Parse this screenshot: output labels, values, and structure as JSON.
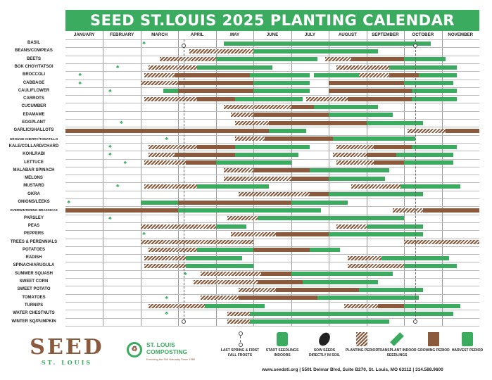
{
  "title": "SEED ST.LOUIS 2025 PLANTING CALENDAR",
  "months": [
    "JANUARY",
    "FEBRUARY",
    "MARCH",
    "APRIL",
    "MAY",
    "JUNE",
    "JULY",
    "AUGUST",
    "SEPTEMBER",
    "OCTOBER",
    "NOVEMBER"
  ],
  "frost_dates": {
    "last_spring_month": 3.15,
    "first_fall_month": 9.3
  },
  "crops": [
    {
      "name": "BASIL",
      "periods": [
        [
          "g",
          4.2,
          9.7
        ]
      ],
      "icons": [
        [
          "sprout",
          2.1
        ]
      ]
    },
    {
      "name": "BEANS/COWPEAS",
      "periods": [
        [
          "p",
          3.3,
          5.0
        ],
        [
          "g",
          5.0,
          8.3
        ]
      ]
    },
    {
      "name": "BEETS",
      "periods": [
        [
          "p",
          2.5,
          4.0
        ],
        [
          "g",
          4.0,
          6.7
        ],
        [
          "p",
          6.9,
          7.6
        ],
        [
          "b",
          7.6,
          9.0
        ],
        [
          "g",
          9.0,
          10.1
        ]
      ]
    },
    {
      "name": "BOK CHOY/TATSOI",
      "periods": [
        [
          "p",
          2.2,
          3.5
        ],
        [
          "g",
          3.5,
          5.5
        ],
        [
          "p",
          7.2,
          8.6
        ],
        [
          "g",
          8.6,
          10.4
        ]
      ],
      "icons": [
        [
          "sprout",
          1.4
        ]
      ]
    },
    {
      "name": "BROCCOLI",
      "periods": [
        [
          "p",
          2.1,
          2.9
        ],
        [
          "b",
          2.9,
          4.9
        ],
        [
          "g",
          4.9,
          6.5
        ],
        [
          "g",
          6.6,
          8.4
        ],
        [
          "p",
          7.8,
          8.6
        ],
        [
          "b",
          8.6,
          9.4
        ],
        [
          "g",
          9.4,
          10.4
        ]
      ],
      "icons": [
        [
          "sprout",
          0.4
        ]
      ]
    },
    {
      "name": "CABBAGE",
      "periods": [
        [
          "p",
          2.0,
          3.0
        ],
        [
          "b",
          3.0,
          5.0
        ],
        [
          "g",
          5.0,
          6.5
        ],
        [
          "b",
          7.0,
          9.0
        ],
        [
          "g",
          9.0,
          10.3
        ]
      ],
      "icons": [
        [
          "sprout",
          0.4
        ]
      ]
    },
    {
      "name": "CAULIFLOWER",
      "periods": [
        [
          "g",
          2.6,
          3.0
        ],
        [
          "b",
          3.0,
          5.0
        ],
        [
          "g",
          5.0,
          6.5
        ],
        [
          "b",
          7.0,
          9.2
        ],
        [
          "g",
          9.2,
          10.4
        ]
      ],
      "icons": [
        [
          "sprout",
          1.2
        ]
      ]
    },
    {
      "name": "CARROTS",
      "periods": [
        [
          "p",
          2.1,
          3.5
        ],
        [
          "b",
          3.5,
          4.5
        ],
        [
          "g",
          4.5,
          6.3
        ],
        [
          "p",
          6.4,
          7.5
        ],
        [
          "b",
          7.5,
          9.2
        ],
        [
          "g",
          9.2,
          10.4
        ]
      ]
    },
    {
      "name": "CUCUMBER",
      "periods": [
        [
          "p",
          4.2,
          6.0
        ],
        [
          "b",
          6.0,
          6.6
        ],
        [
          "g",
          6.6,
          8.3
        ]
      ]
    },
    {
      "name": "EDAMAME",
      "periods": [
        [
          "p",
          4.4,
          5.0
        ],
        [
          "b",
          5.0,
          7.0
        ],
        [
          "g",
          7.0,
          8.7
        ]
      ]
    },
    {
      "name": "EGGPLANT",
      "periods": [
        [
          "p",
          4.5,
          5.4
        ],
        [
          "b",
          5.4,
          8.0
        ],
        [
          "g",
          8.0,
          9.5
        ]
      ],
      "icons": [
        [
          "sprout",
          1.5
        ]
      ]
    },
    {
      "name": "GARLIC/SHALLOTS",
      "periods": [
        [
          "b",
          0.0,
          5.4
        ],
        [
          "g",
          5.4,
          6.4
        ],
        [
          "p",
          9.1,
          10.1
        ],
        [
          "b",
          10.1,
          11.0
        ]
      ]
    },
    {
      "name": "GROUND CHERRY/TOMATILLO",
      "tiny": true,
      "periods": [
        [
          "p",
          4.5,
          5.3
        ],
        [
          "b",
          5.3,
          7.1
        ],
        [
          "g",
          7.1,
          9.3
        ]
      ],
      "icons": [
        [
          "sprout",
          2.7
        ]
      ]
    },
    {
      "name": "KALE/COLLARD/CHARD",
      "periods": [
        [
          "p",
          2.2,
          3.5
        ],
        [
          "b",
          3.5,
          4.5
        ],
        [
          "g",
          4.5,
          6.5
        ],
        [
          "p",
          7.2,
          8.2
        ],
        [
          "b",
          8.2,
          9.2
        ],
        [
          "g",
          9.2,
          10.4
        ]
      ],
      "icons": [
        [
          "sprout",
          1.2
        ]
      ]
    },
    {
      "name": "KOHLRABI",
      "periods": [
        [
          "p",
          2.2,
          2.9
        ],
        [
          "b",
          2.9,
          4.5
        ],
        [
          "g",
          4.5,
          6.2
        ],
        [
          "p",
          7.1,
          8.0
        ],
        [
          "b",
          8.0,
          8.8
        ],
        [
          "g",
          8.8,
          10.3
        ]
      ],
      "icons": [
        [
          "sprout",
          1.2
        ]
      ]
    },
    {
      "name": "LETTUCE",
      "periods": [
        [
          "p",
          2.1,
          3.2
        ],
        [
          "b",
          3.2,
          4.0
        ],
        [
          "g",
          4.0,
          6.0
        ],
        [
          "p",
          7.2,
          8.2
        ],
        [
          "b",
          8.2,
          9.0
        ],
        [
          "g",
          9.0,
          10.3
        ]
      ],
      "icons": [
        [
          "sprout",
          1.6
        ]
      ]
    },
    {
      "name": "MALABAR SPINACH",
      "periods": [
        [
          "p",
          4.2,
          5.0
        ],
        [
          "b",
          5.0,
          6.5
        ],
        [
          "g",
          6.5,
          8.6
        ]
      ]
    },
    {
      "name": "MELONS",
      "periods": [
        [
          "p",
          4.2,
          6.0
        ],
        [
          "b",
          6.0,
          7.0
        ],
        [
          "g",
          7.0,
          8.5
        ]
      ]
    },
    {
      "name": "MUSTARD",
      "periods": [
        [
          "p",
          2.1,
          3.5
        ],
        [
          "g",
          3.5,
          5.4
        ],
        [
          "p",
          7.6,
          8.9
        ],
        [
          "g",
          8.9,
          10.5
        ]
      ],
      "icons": [
        [
          "sprout",
          1.4
        ]
      ]
    },
    {
      "name": "OKRA",
      "periods": [
        [
          "p",
          4.6,
          6.5
        ],
        [
          "b",
          6.5,
          7.0
        ],
        [
          "g",
          7.0,
          9.5
        ]
      ]
    },
    {
      "name": "ONIONS/LEEKS",
      "periods": [
        [
          "g",
          2.0,
          3.0
        ],
        [
          "b",
          3.0,
          6.0
        ],
        [
          "g",
          6.0,
          7.5
        ]
      ],
      "icons": [
        [
          "sprout",
          0.1
        ]
      ]
    },
    {
      "name": "OVERWINTERING BRASSICAS",
      "tiny": true,
      "periods": [
        [
          "b",
          0.0,
          3.0
        ],
        [
          "g",
          3.0,
          6.8
        ],
        [
          "p",
          8.7,
          9.5
        ],
        [
          "b",
          9.5,
          11.0
        ]
      ]
    },
    {
      "name": "PARSLEY",
      "periods": [
        [
          "p",
          4.3,
          5.1
        ],
        [
          "g",
          5.1,
          9.0
        ]
      ],
      "icons": [
        [
          "sprout",
          1.2
        ]
      ]
    },
    {
      "name": "PEAS",
      "periods": [
        [
          "p",
          2.0,
          4.0
        ],
        [
          "g",
          4.0,
          4.8
        ],
        [
          "p",
          7.2,
          8.0
        ],
        [
          "g",
          8.0,
          9.5
        ]
      ]
    },
    {
      "name": "PEPPERS",
      "periods": [
        [
          "p",
          4.4,
          5.6
        ],
        [
          "b",
          5.6,
          7.0
        ],
        [
          "g",
          7.0,
          9.5
        ]
      ],
      "icons": [
        [
          "sprout",
          2.1
        ]
      ]
    },
    {
      "name": "TREES & PERENNIALS",
      "periods": [
        [
          "p",
          2.0,
          5.0
        ],
        [
          "p",
          9.0,
          11.0
        ]
      ]
    },
    {
      "name": "POTATOES",
      "periods": [
        [
          "p",
          2.2,
          3.5
        ],
        [
          "g",
          3.5,
          5.0
        ],
        [
          "b",
          5.0,
          6.5
        ],
        [
          "g",
          6.5,
          7.3
        ]
      ]
    },
    {
      "name": "RADISH",
      "periods": [
        [
          "p",
          2.1,
          3.2
        ],
        [
          "g",
          3.2,
          4.7
        ],
        [
          "p",
          7.5,
          8.4
        ],
        [
          "g",
          8.4,
          10.2
        ]
      ]
    },
    {
      "name": "SPINACH/ARUGULA",
      "periods": [
        [
          "p",
          2.1,
          3.2
        ],
        [
          "g",
          3.2,
          5.0
        ],
        [
          "p",
          7.5,
          9.0
        ],
        [
          "g",
          9.0,
          10.4
        ]
      ]
    },
    {
      "name": "SUMMER SQUASH",
      "periods": [
        [
          "p",
          3.6,
          5.2
        ],
        [
          "b",
          5.2,
          6.0
        ],
        [
          "g",
          6.0,
          8.7
        ]
      ],
      "icons": [
        [
          "sprout",
          3.2
        ]
      ]
    },
    {
      "name": "SWEET CORN",
      "periods": [
        [
          "p",
          3.4,
          5.1
        ],
        [
          "b",
          5.1,
          6.3
        ],
        [
          "g",
          6.3,
          8.3
        ]
      ]
    },
    {
      "name": "SWEET POTATO",
      "periods": [
        [
          "p",
          4.6,
          5.6
        ],
        [
          "b",
          5.6,
          7.8
        ],
        [
          "g",
          7.8,
          9.5
        ]
      ]
    },
    {
      "name": "TOMATOES",
      "periods": [
        [
          "p",
          3.6,
          4.6
        ],
        [
          "b",
          4.6,
          6.7
        ],
        [
          "g",
          6.7,
          9.4
        ]
      ],
      "icons": [
        [
          "sprout",
          2.7
        ]
      ]
    },
    {
      "name": "TURNIPS",
      "periods": [
        [
          "p",
          2.2,
          3.7
        ],
        [
          "g",
          3.7,
          5.3
        ],
        [
          "p",
          7.4,
          8.3
        ],
        [
          "b",
          8.3,
          9.0
        ],
        [
          "g",
          9.0,
          10.5
        ]
      ]
    },
    {
      "name": "WATER CHESTNUTS",
      "periods": [
        [
          "p",
          4.3,
          4.9
        ],
        [
          "g",
          4.9,
          10.3
        ]
      ],
      "icons": [
        [
          "sprout",
          2.7
        ]
      ]
    },
    {
      "name": "WINTER SQ/PUMPKIN",
      "periods": [
        [
          "p",
          4.3,
          4.9
        ],
        [
          "g",
          4.9,
          8.6
        ]
      ]
    }
  ],
  "legend": {
    "frost": "LAST SPRING & FIRST FALL FROSTS",
    "indoors": "START SEEDLINGS INDOORS",
    "sow": "SOW SEEDS DIRECTLY IN SOIL",
    "planting": "PLANTING PERIOD",
    "transplant": "TRANSPLANT INDOOR SEEDLINGS",
    "growing": "GROWING PERIOD",
    "harvest": "HARVEST PERIOD"
  },
  "logos": {
    "seed": "SEED",
    "seed_sub": "ST. LOUIS",
    "composting": "ST. LOUIS COMPOSTING",
    "composting_tag": "Enriching the Soil Naturally Since 1980"
  },
  "address": "www.seedstl.org  |  5501 Delmar Blvd, Suite B270, St. Louis, MO 63112  |  314.588.9600",
  "colors": {
    "green": "#3aab5f",
    "brown": "#8b5a3c"
  }
}
